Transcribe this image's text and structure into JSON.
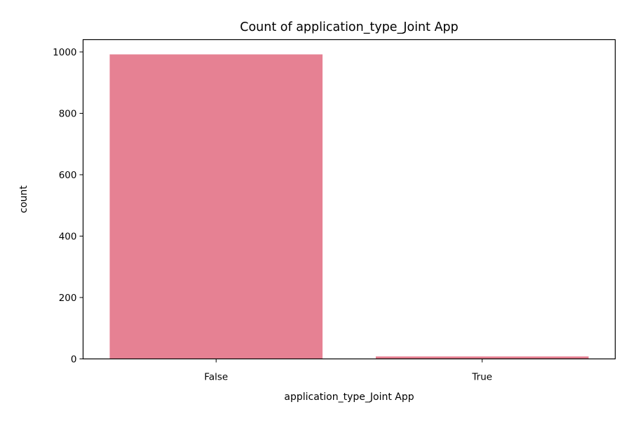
{
  "chart_data": {
    "type": "bar",
    "title": "Count of application_type_Joint App",
    "xlabel": "application_type_Joint App",
    "ylabel": "count",
    "categories": [
      "False",
      "True"
    ],
    "values": [
      992,
      8
    ],
    "ylim": [
      0,
      1040
    ],
    "yticks": [
      0,
      200,
      400,
      600,
      800,
      1000
    ],
    "grid": false,
    "legend": "none",
    "colors": {
      "bar": "#e68193",
      "axis": "#000000",
      "background": "#ffffff"
    }
  }
}
